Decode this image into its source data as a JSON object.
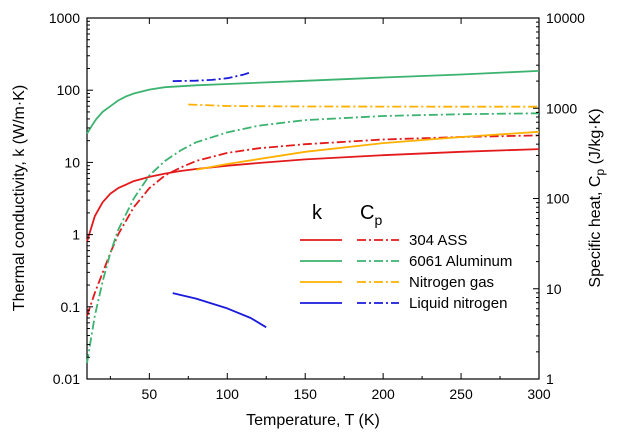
{
  "chart_data": {
    "type": "line",
    "xlabel": "Temperature, T (K)",
    "ylabel_left": "Thermal conductivity, k (W/m·K)",
    "ylabel_right_main": "Specific heat, C",
    "ylabel_right_sub": "p",
    "ylabel_right_unit": " (J/kg·K)",
    "xlim": [
      10,
      300
    ],
    "ylim_left": [
      0.01,
      1000
    ],
    "ylim_right": [
      1,
      10000
    ],
    "yscale": "log",
    "grid": false,
    "x_ticks": [
      50,
      100,
      150,
      200,
      250,
      300
    ],
    "left_ticks": [
      0.01,
      0.1,
      1,
      10,
      100,
      1000
    ],
    "left_tick_labels": [
      "0.01",
      "0.1",
      "1",
      "10",
      "100",
      "1000"
    ],
    "right_ticks": [
      1,
      10,
      100,
      1000,
      10000
    ],
    "right_tick_labels": [
      "1",
      "10",
      "100",
      "1000",
      "10000"
    ],
    "legend": {
      "position": "center-right",
      "k_header": "k",
      "cp_header_main": "C",
      "cp_header_sub": "p",
      "entries": [
        {
          "label": "304 ASS",
          "color": "#e31a1c"
        },
        {
          "label": "6061 Aluminum",
          "color": "#3cb371"
        },
        {
          "label": "Nitrogen gas",
          "color": "#ffb000"
        },
        {
          "label": "Liquid nitrogen",
          "color": "#1a1adb"
        }
      ]
    },
    "series": [
      {
        "material": "304 ASS",
        "property": "k",
        "axis": "left",
        "style": "solid",
        "color": "#e31a1c",
        "x": [
          10,
          15,
          20,
          25,
          30,
          40,
          50,
          60,
          70,
          80,
          100,
          120,
          150,
          200,
          250,
          300
        ],
        "y": [
          0.8,
          1.8,
          2.8,
          3.7,
          4.4,
          5.5,
          6.3,
          7.0,
          7.6,
          8.1,
          9.0,
          9.8,
          11.0,
          12.6,
          14.0,
          15.3
        ]
      },
      {
        "material": "304 ASS",
        "property": "Cp",
        "axis": "right",
        "style": "dashdot",
        "color": "#e31a1c",
        "x": [
          10,
          15,
          20,
          25,
          30,
          40,
          50,
          60,
          70,
          80,
          100,
          120,
          150,
          200,
          250,
          300
        ],
        "y": [
          5,
          9,
          15,
          25,
          40,
          80,
          130,
          180,
          220,
          260,
          320,
          360,
          400,
          450,
          480,
          500
        ]
      },
      {
        "material": "6061 Aluminum",
        "property": "k",
        "axis": "left",
        "style": "solid",
        "color": "#3cb371",
        "x": [
          10,
          13,
          16,
          20,
          25,
          30,
          35,
          40,
          50,
          60,
          80,
          100,
          150,
          200,
          250,
          300
        ],
        "y": [
          25,
          32,
          40,
          50,
          60,
          72,
          82,
          90,
          102,
          110,
          117,
          122,
          135,
          150,
          165,
          185
        ]
      },
      {
        "material": "6061 Aluminum",
        "property": "Cp",
        "axis": "right",
        "style": "dashdot",
        "color": "#3cb371",
        "x": [
          10,
          15,
          20,
          25,
          30,
          40,
          50,
          60,
          70,
          80,
          100,
          120,
          150,
          200,
          250,
          300
        ],
        "y": [
          1.5,
          5,
          12,
          25,
          45,
          100,
          180,
          260,
          340,
          420,
          540,
          640,
          740,
          820,
          860,
          880
        ]
      },
      {
        "material": "Nitrogen gas",
        "property": "k",
        "axis": "left",
        "style": "solid",
        "color": "#ffb000",
        "x": [
          80,
          100,
          150,
          200,
          250,
          300
        ],
        "y": [
          7.9,
          9.5,
          14,
          18.5,
          22.5,
          26.5
        ]
      },
      {
        "material": "Nitrogen gas",
        "property": "Cp",
        "axis": "right",
        "style": "dashdot",
        "color": "#ffb000",
        "x": [
          75,
          100,
          150,
          200,
          250,
          300
        ],
        "y": [
          1100,
          1060,
          1045,
          1042,
          1041,
          1040
        ]
      },
      {
        "material": "Liquid nitrogen",
        "property": "k",
        "axis": "left",
        "style": "solid",
        "color": "#1a1adb",
        "x": [
          65,
          80,
          100,
          115,
          125
        ],
        "y": [
          0.155,
          0.13,
          0.095,
          0.07,
          0.052
        ]
      },
      {
        "material": "Liquid nitrogen",
        "property": "Cp",
        "axis": "right",
        "style": "dashdot",
        "color": "#1a1adb",
        "x": [
          65,
          80,
          90,
          100,
          110,
          115
        ],
        "y": [
          2000,
          2020,
          2060,
          2150,
          2350,
          2500
        ]
      }
    ]
  }
}
